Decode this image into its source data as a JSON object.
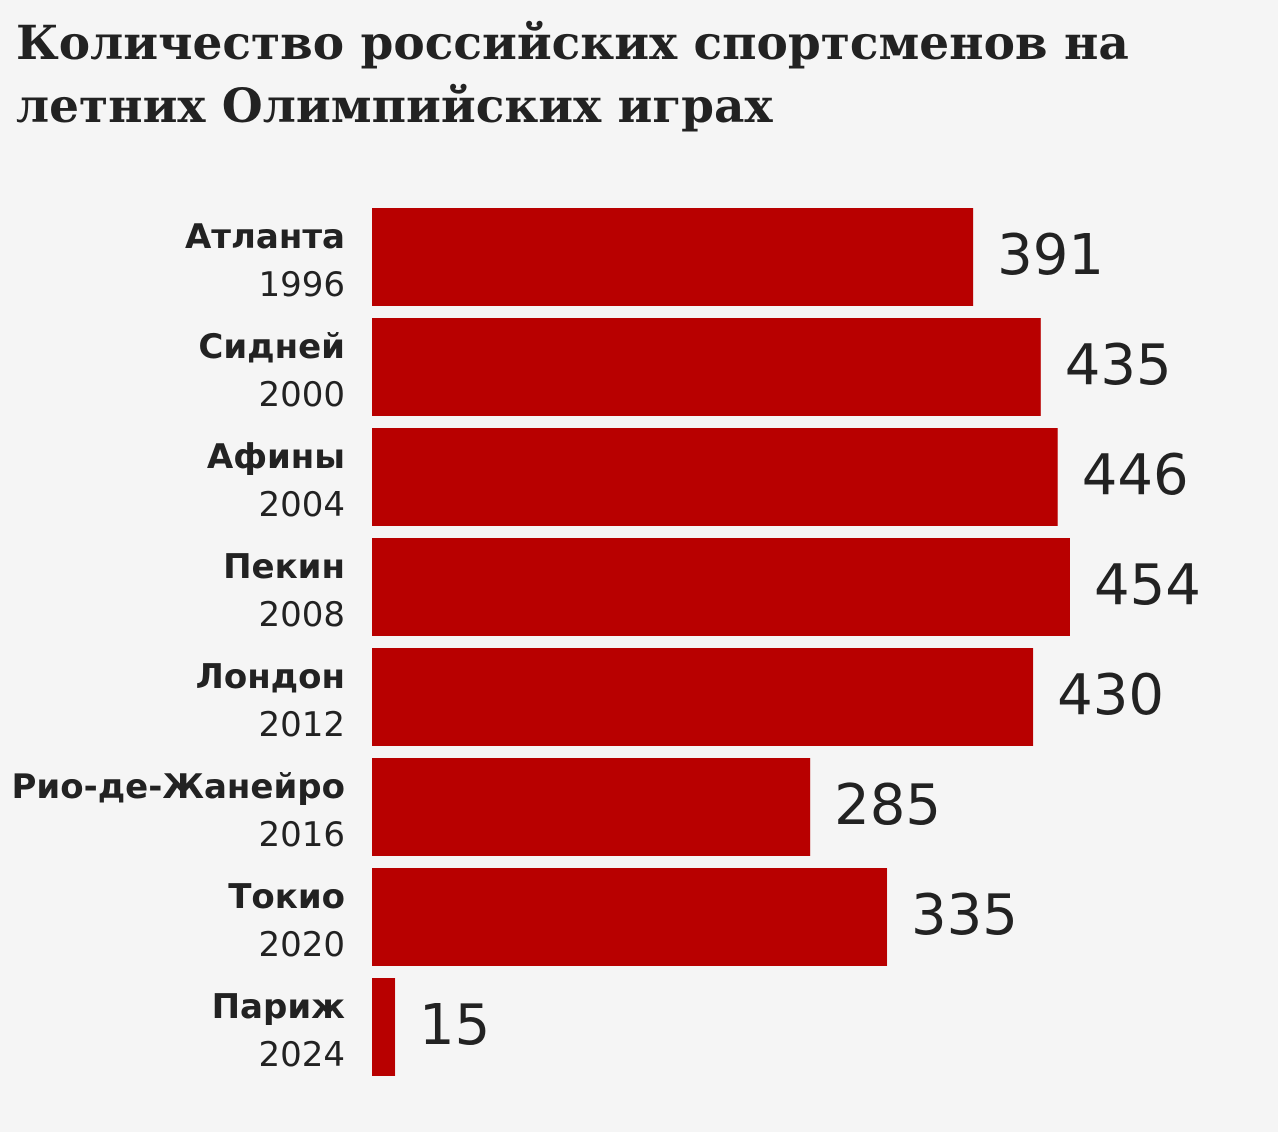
{
  "chart_data": {
    "type": "bar",
    "orientation": "horizontal",
    "title": "Количество российских спортсменов на летних Олимпийских играх",
    "categories": [
      {
        "city": "Атланта",
        "year": "1996"
      },
      {
        "city": "Сидней",
        "year": "2000"
      },
      {
        "city": "Афины",
        "year": "2004"
      },
      {
        "city": "Пекин",
        "year": "2008"
      },
      {
        "city": "Лондон",
        "year": "2012"
      },
      {
        "city": "Рио-де-Жанейро",
        "year": "2016"
      },
      {
        "city": "Токио",
        "year": "2020"
      },
      {
        "city": "Париж",
        "year": "2024"
      }
    ],
    "values": [
      391,
      435,
      446,
      454,
      430,
      285,
      335,
      15
    ],
    "data_labels": [
      "391",
      "435",
      "446",
      "454",
      "430",
      "285",
      "335",
      "15"
    ],
    "xlim": [
      0,
      454
    ],
    "grid": false,
    "legend": "none",
    "colors": {
      "bar": "#b80000",
      "text": "#222222",
      "background": "#f5f5f5"
    }
  }
}
